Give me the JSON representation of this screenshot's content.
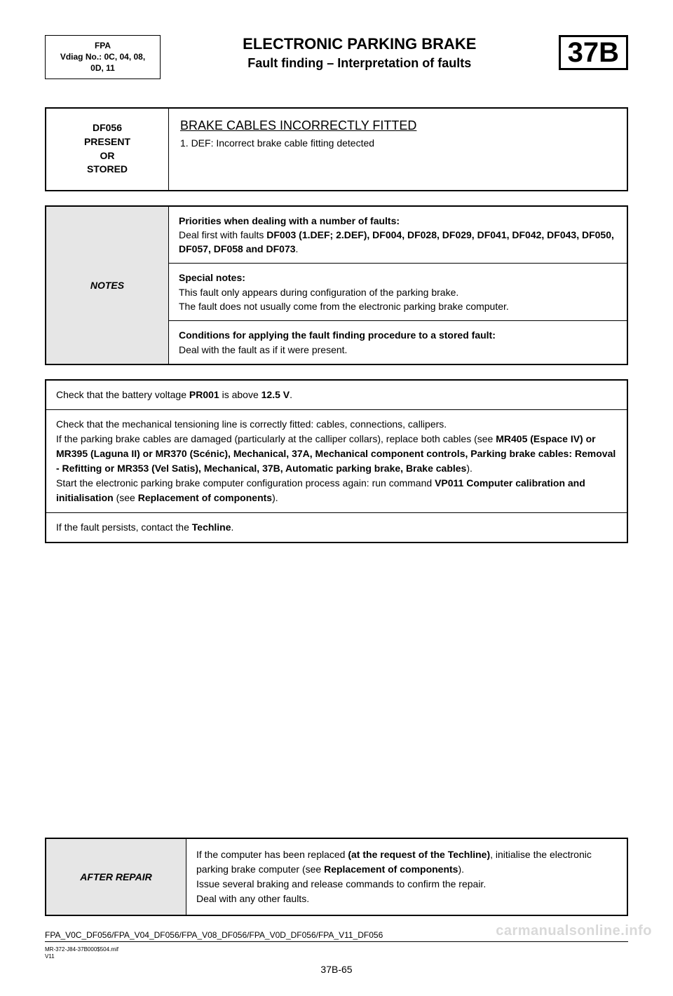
{
  "header": {
    "left_line1": "FPA",
    "left_line2": "Vdiag No.: 0C, 04, 08,",
    "left_line3": "0D, 11",
    "title": "ELECTRONIC PARKING BRAKE",
    "subtitle": "Fault finding – Interpretation of faults",
    "code": "37B"
  },
  "fault": {
    "left": "DF056\nPRESENT\nOR\nSTORED",
    "title": "BRAKE CABLES INCORRECTLY FITTED",
    "def": "1. DEF: Incorrect brake cable fitting detected"
  },
  "notes": {
    "label": "NOTES",
    "row1_heading": "Priorities when dealing with a number of faults:",
    "row1_body_pre": "Deal first with faults ",
    "row1_body_bold": "DF003 (1.DEF; 2.DEF), DF004, DF028, DF029, DF041, DF042, DF043, DF050, DF057, DF058 and DF073",
    "row1_body_post": ".",
    "row2_heading": "Special notes:",
    "row2_line1": "This fault only appears during configuration of the parking brake.",
    "row2_line2": "The fault does not usually come from the electronic parking brake computer.",
    "row3_heading": "Conditions for applying the fault finding procedure to a stored fault:",
    "row3_body": "Deal with the fault as if it were present."
  },
  "steps": {
    "s1_pre": "Check that the battery voltage ",
    "s1_b1": "PR001",
    "s1_mid": " is above ",
    "s1_b2": "12.5 V",
    "s1_post": ".",
    "s2_l1": "Check that the mechanical tensioning line is correctly fitted: cables, connections, callipers.",
    "s2_l2_pre": "If the parking brake cables are damaged (particularly at the calliper collars), replace both cables (see ",
    "s2_l2_bold": "MR405 (Espace IV) or MR395 (Laguna II) or MR370 (Scénic), Mechanical, 37A, Mechanical component controls, Parking brake cables: Removal - Refitting or MR353 (Vel Satis), Mechanical, 37B, Automatic parking brake, Brake cables",
    "s2_l2_post": ").",
    "s2_l3_pre": "Start the electronic parking brake computer configuration process again: run command ",
    "s2_l3_b1": "VP011 Computer calibration and initialisation",
    "s2_l3_mid": " (see ",
    "s2_l3_b2": "Replacement of components",
    "s2_l3_post": ").",
    "s3_pre": "If the fault persists, contact the ",
    "s3_bold": "Techline",
    "s3_post": "."
  },
  "after": {
    "label": "AFTER REPAIR",
    "l1_pre": "If the computer has been replaced ",
    "l1_b1": "(at the request of the Techline)",
    "l1_mid": ", initialise the electronic parking brake computer (see ",
    "l1_b2": "Replacement of components",
    "l1_post": ").",
    "l2": "Issue several braking and release commands to confirm the repair.",
    "l3": "Deal with any other faults."
  },
  "footer": {
    "line": "FPA_V0C_DF056/FPA_V04_DF056/FPA_V08_DF056/FPA_V0D_DF056/FPA_V11_DF056",
    "small1": "MR-372-J84-37B000$504.mif",
    "small2": "V11",
    "page": "37B-65",
    "watermark": "carmanualsonline.info"
  },
  "colors": {
    "bg": "#ffffff",
    "text": "#000000",
    "shade": "#e6e6e6",
    "watermark": "#d9d9d9"
  }
}
